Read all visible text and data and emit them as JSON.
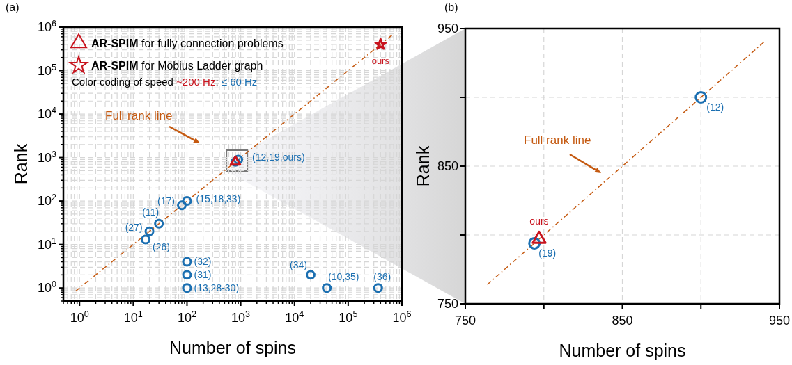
{
  "chart_data": [
    {
      "type": "scatter",
      "title": "(a)",
      "xlabel": "Number of spins",
      "ylabel": "Rank",
      "log": "xy",
      "grid": true,
      "legend": "top left",
      "xlim": [
        0.5,
        1000000
      ],
      "ylim": [
        0.5,
        1000000
      ],
      "xticks": [
        {
          "value": 1,
          "label": "10$^{0}$"
        },
        {
          "value": 10,
          "label": "10$^{1}$"
        },
        {
          "value": 100,
          "label": "10$^{2}$"
        },
        {
          "value": 1000,
          "label": "10$^{3}$"
        },
        {
          "value": 10000,
          "label": "10$^{4}$"
        },
        {
          "value": 100000,
          "label": "10$^{5}$"
        },
        {
          "value": 1000000,
          "label": "10$^{6}$"
        }
      ],
      "yticks": [
        {
          "value": 1,
          "label": "10$^{0}$"
        },
        {
          "value": 10,
          "label": "10$^{1}$"
        },
        {
          "value": 100,
          "label": "10$^{2}$"
        },
        {
          "value": 1000,
          "label": "10$^{3}$"
        },
        {
          "value": 10000,
          "label": "10$^{4}$"
        },
        {
          "value": 100000,
          "label": "10$^{5}$"
        },
        {
          "value": 1000000,
          "label": "10$^{6}$"
        }
      ],
      "series": [
        {
          "color": "#1b6fb1",
          "marker": "circle",
          "x": [
            17,
            20,
            30,
            80,
            100,
            100,
            100,
            100,
            20000,
            40000,
            360000,
            794,
            900
          ],
          "values": [
            13,
            20,
            30,
            80,
            100,
            4,
            2,
            1,
            2,
            1,
            1,
            794,
            900
          ]
        },
        {
          "name": "AR-SPIM for fully connection problems",
          "color": "#c8141e",
          "marker": "triangle",
          "x": [
            797
          ],
          "values": [
            797
          ]
        },
        {
          "name": "AR-SPIM for Möbius Ladder graph",
          "color": "#c8141e",
          "marker": "star",
          "x": [
            400000
          ],
          "values": [
            400000
          ]
        },
        {
          "name": "Full rank line",
          "type": "line",
          "color": "#c55a11",
          "line_style": "dashed",
          "x": [
            0.85,
            650000
          ],
          "values": [
            0.85,
            650000
          ]
        }
      ],
      "annotations": [
        "Color coding of speed",
        "~200 Hz",
        ";",
        "≤ 60 Hz",
        {
          "text": "(26)",
          "x": 17,
          "y": 13
        },
        {
          "text": "(27)",
          "x": 20,
          "y": 20
        },
        {
          "text": "(11)",
          "x": 30,
          "y": 30
        },
        {
          "text": "(17)",
          "x": 80,
          "y": 80
        },
        {
          "text": "(15,18,33)",
          "x": 100,
          "y": 100
        },
        {
          "text": "(32)",
          "x": 100,
          "y": 4
        },
        {
          "text": "(31)",
          "x": 100,
          "y": 2
        },
        {
          "text": "(13,28-30)",
          "x": 100,
          "y": 1
        },
        {
          "text": "(34)",
          "x": 20000,
          "y": 2
        },
        {
          "text": "(10,35)",
          "x": 40000,
          "y": 1
        },
        {
          "text": "(36)",
          "x": 360000,
          "y": 1
        },
        {
          "text": "(12,19,ours)",
          "x": 900,
          "y": 900
        },
        {
          "text": "ours",
          "x": 400000,
          "y": 400000
        }
      ]
    },
    {
      "type": "scatter",
      "title": "(b)",
      "xlabel": "Number of spins",
      "ylabel": "Rank",
      "grid": true,
      "xlim": [
        750,
        950
      ],
      "ylim": [
        750,
        950
      ],
      "xticks": [
        750,
        {
          "value": 800,
          "label": null
        },
        850,
        {
          "value": 900,
          "label": null
        },
        950
      ],
      "yticks": [
        750,
        {
          "value": 800,
          "label": null
        },
        850,
        {
          "value": 900,
          "label": null
        },
        950
      ],
      "series": [
        {
          "color": "#1b6fb1",
          "marker": "circle",
          "x": [
            794,
            900
          ],
          "values": [
            794,
            900
          ]
        },
        {
          "color": "#c8141e",
          "marker": "triangle",
          "x": [
            797
          ],
          "values": [
            797
          ]
        },
        {
          "name": "Full rank line",
          "type": "line",
          "color": "#c55a11",
          "line_style": "dashed",
          "x": [
            764,
            940
          ],
          "values": [
            764,
            940
          ]
        }
      ],
      "annotations": [
        {
          "text": "(12)",
          "x": 900,
          "y": 900
        },
        {
          "text": "(19)",
          "x": 794,
          "y": 794
        },
        {
          "text": "ours",
          "x": 797,
          "y": 797
        }
      ]
    }
  ]
}
